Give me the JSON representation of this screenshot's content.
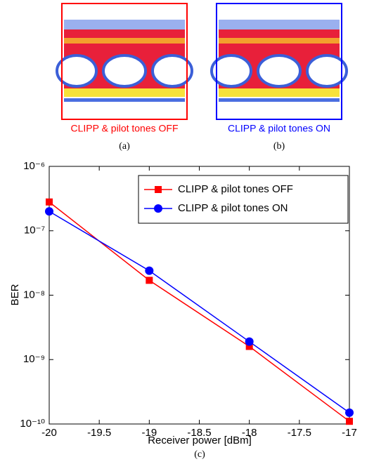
{
  "panels": [
    {
      "caption": "CLIPP & pilot tones OFF",
      "label": "(a)",
      "color": "#ff0000"
    },
    {
      "caption": "CLIPP & pilot tones ON",
      "label": "(b)",
      "color": "#0000ff"
    }
  ],
  "chart_data": {
    "type": "line",
    "label": "(c)",
    "x_label": "Receiver power [dBm]",
    "y_label": "BER",
    "x": [
      -20,
      -19,
      -18,
      -17
    ],
    "series": [
      {
        "name": "CLIPP & pilot tones OFF",
        "color": "#ff0000",
        "marker": "square",
        "values": [
          2.8e-07,
          1.7e-08,
          1.6e-09,
          1.1e-10
        ]
      },
      {
        "name": "CLIPP & pilot tones ON",
        "color": "#0000ff",
        "marker": "circle",
        "values": [
          2e-07,
          2.4e-08,
          1.9e-09,
          1.5e-10
        ]
      }
    ],
    "xlim": [
      -20,
      -17
    ],
    "xticks": [
      -20,
      -19.5,
      -19,
      -18.5,
      -18,
      -17.5,
      -17
    ],
    "ylim": [
      1e-10,
      1e-06
    ],
    "log_y": true,
    "yticks": [
      {
        "value": 1e-10,
        "label": "10⁻¹⁰"
      },
      {
        "value": 1e-09,
        "label": "10⁻⁹"
      },
      {
        "value": 1e-08,
        "label": "10⁻⁸"
      },
      {
        "value": 1e-07,
        "label": "10⁻⁷"
      },
      {
        "value": 1e-06,
        "label": "10⁻⁶"
      }
    ],
    "legend": "top-right"
  }
}
